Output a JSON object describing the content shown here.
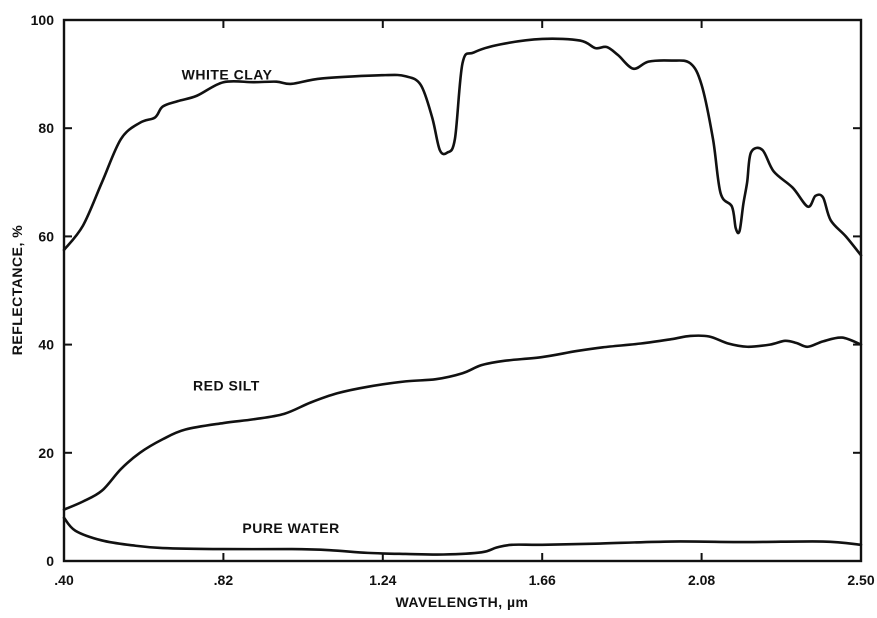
{
  "chart_data": {
    "type": "line",
    "xlabel": "WAVELENGTH, µm",
    "ylabel": "REFLECTANCE, %",
    "xlim": [
      0.4,
      2.5
    ],
    "ylim": [
      0,
      100
    ],
    "x_ticks": [
      0.4,
      0.82,
      1.24,
      1.66,
      2.08,
      2.5
    ],
    "x_tick_labels": [
      ".40",
      ".82",
      "1.24",
      "1.66",
      "2.08",
      "2.50"
    ],
    "y_ticks": [
      0,
      20,
      40,
      60,
      80,
      100
    ],
    "y_tick_labels": [
      "0",
      "20",
      "40",
      "60",
      "80",
      "100"
    ],
    "grid": false,
    "legend": "none",
    "colors": {
      "line": "#111111",
      "background": "#ffffff"
    },
    "series": [
      {
        "name": "WHITE CLAY",
        "label_at": [
          0.71,
          89
        ],
        "points": [
          [
            0.4,
            57.5
          ],
          [
            0.45,
            62
          ],
          [
            0.5,
            70
          ],
          [
            0.55,
            78
          ],
          [
            0.6,
            81
          ],
          [
            0.64,
            82
          ],
          [
            0.66,
            84
          ],
          [
            0.7,
            85
          ],
          [
            0.75,
            86
          ],
          [
            0.82,
            88.5
          ],
          [
            0.9,
            88.5
          ],
          [
            0.96,
            88.6
          ],
          [
            1.0,
            88.2
          ],
          [
            1.08,
            89.2
          ],
          [
            1.24,
            89.8
          ],
          [
            1.3,
            89.6
          ],
          [
            1.34,
            88
          ],
          [
            1.37,
            82
          ],
          [
            1.39,
            76
          ],
          [
            1.41,
            75.5
          ],
          [
            1.43,
            78
          ],
          [
            1.45,
            92
          ],
          [
            1.48,
            94
          ],
          [
            1.55,
            95.5
          ],
          [
            1.66,
            96.5
          ],
          [
            1.76,
            96.2
          ],
          [
            1.8,
            94.8
          ],
          [
            1.83,
            95
          ],
          [
            1.86,
            93.5
          ],
          [
            1.9,
            91
          ],
          [
            1.94,
            92.3
          ],
          [
            2.0,
            92.5
          ],
          [
            2.05,
            92
          ],
          [
            2.08,
            88
          ],
          [
            2.11,
            78
          ],
          [
            2.13,
            68
          ],
          [
            2.16,
            65.5
          ],
          [
            2.17,
            61.5
          ],
          [
            2.18,
            61
          ],
          [
            2.19,
            66
          ],
          [
            2.2,
            70
          ],
          [
            2.21,
            75.5
          ],
          [
            2.24,
            76
          ],
          [
            2.27,
            72
          ],
          [
            2.32,
            69
          ],
          [
            2.36,
            65.5
          ],
          [
            2.38,
            67.5
          ],
          [
            2.4,
            67.2
          ],
          [
            2.42,
            63
          ],
          [
            2.46,
            60
          ],
          [
            2.5,
            56.5
          ]
        ]
      },
      {
        "name": "RED SILT",
        "label_at": [
          0.74,
          31.5
        ],
        "points": [
          [
            0.4,
            9.5
          ],
          [
            0.45,
            11
          ],
          [
            0.5,
            13
          ],
          [
            0.55,
            17
          ],
          [
            0.6,
            20
          ],
          [
            0.66,
            22.5
          ],
          [
            0.72,
            24.3
          ],
          [
            0.82,
            25.5
          ],
          [
            0.9,
            26.2
          ],
          [
            0.98,
            27.2
          ],
          [
            1.05,
            29.3
          ],
          [
            1.12,
            31
          ],
          [
            1.2,
            32.2
          ],
          [
            1.3,
            33.2
          ],
          [
            1.38,
            33.6
          ],
          [
            1.45,
            34.7
          ],
          [
            1.5,
            36.2
          ],
          [
            1.56,
            37
          ],
          [
            1.66,
            37.7
          ],
          [
            1.75,
            38.8
          ],
          [
            1.82,
            39.5
          ],
          [
            1.92,
            40.2
          ],
          [
            2.0,
            41
          ],
          [
            2.05,
            41.6
          ],
          [
            2.1,
            41.5
          ],
          [
            2.15,
            40.2
          ],
          [
            2.2,
            39.6
          ],
          [
            2.26,
            40
          ],
          [
            2.3,
            40.7
          ],
          [
            2.33,
            40.3
          ],
          [
            2.36,
            39.6
          ],
          [
            2.4,
            40.6
          ],
          [
            2.45,
            41.3
          ],
          [
            2.5,
            40
          ]
        ]
      },
      {
        "name": "PURE WATER",
        "label_at": [
          0.87,
          5.2
        ],
        "points": [
          [
            0.4,
            8
          ],
          [
            0.43,
            5.6
          ],
          [
            0.5,
            3.8
          ],
          [
            0.58,
            2.9
          ],
          [
            0.66,
            2.4
          ],
          [
            0.82,
            2.2
          ],
          [
            1.0,
            2.2
          ],
          [
            1.1,
            2
          ],
          [
            1.2,
            1.5
          ],
          [
            1.3,
            1.3
          ],
          [
            1.4,
            1.2
          ],
          [
            1.5,
            1.6
          ],
          [
            1.54,
            2.5
          ],
          [
            1.58,
            3
          ],
          [
            1.66,
            3
          ],
          [
            1.8,
            3.2
          ],
          [
            2.0,
            3.6
          ],
          [
            2.2,
            3.5
          ],
          [
            2.4,
            3.6
          ],
          [
            2.5,
            3
          ]
        ]
      }
    ]
  }
}
